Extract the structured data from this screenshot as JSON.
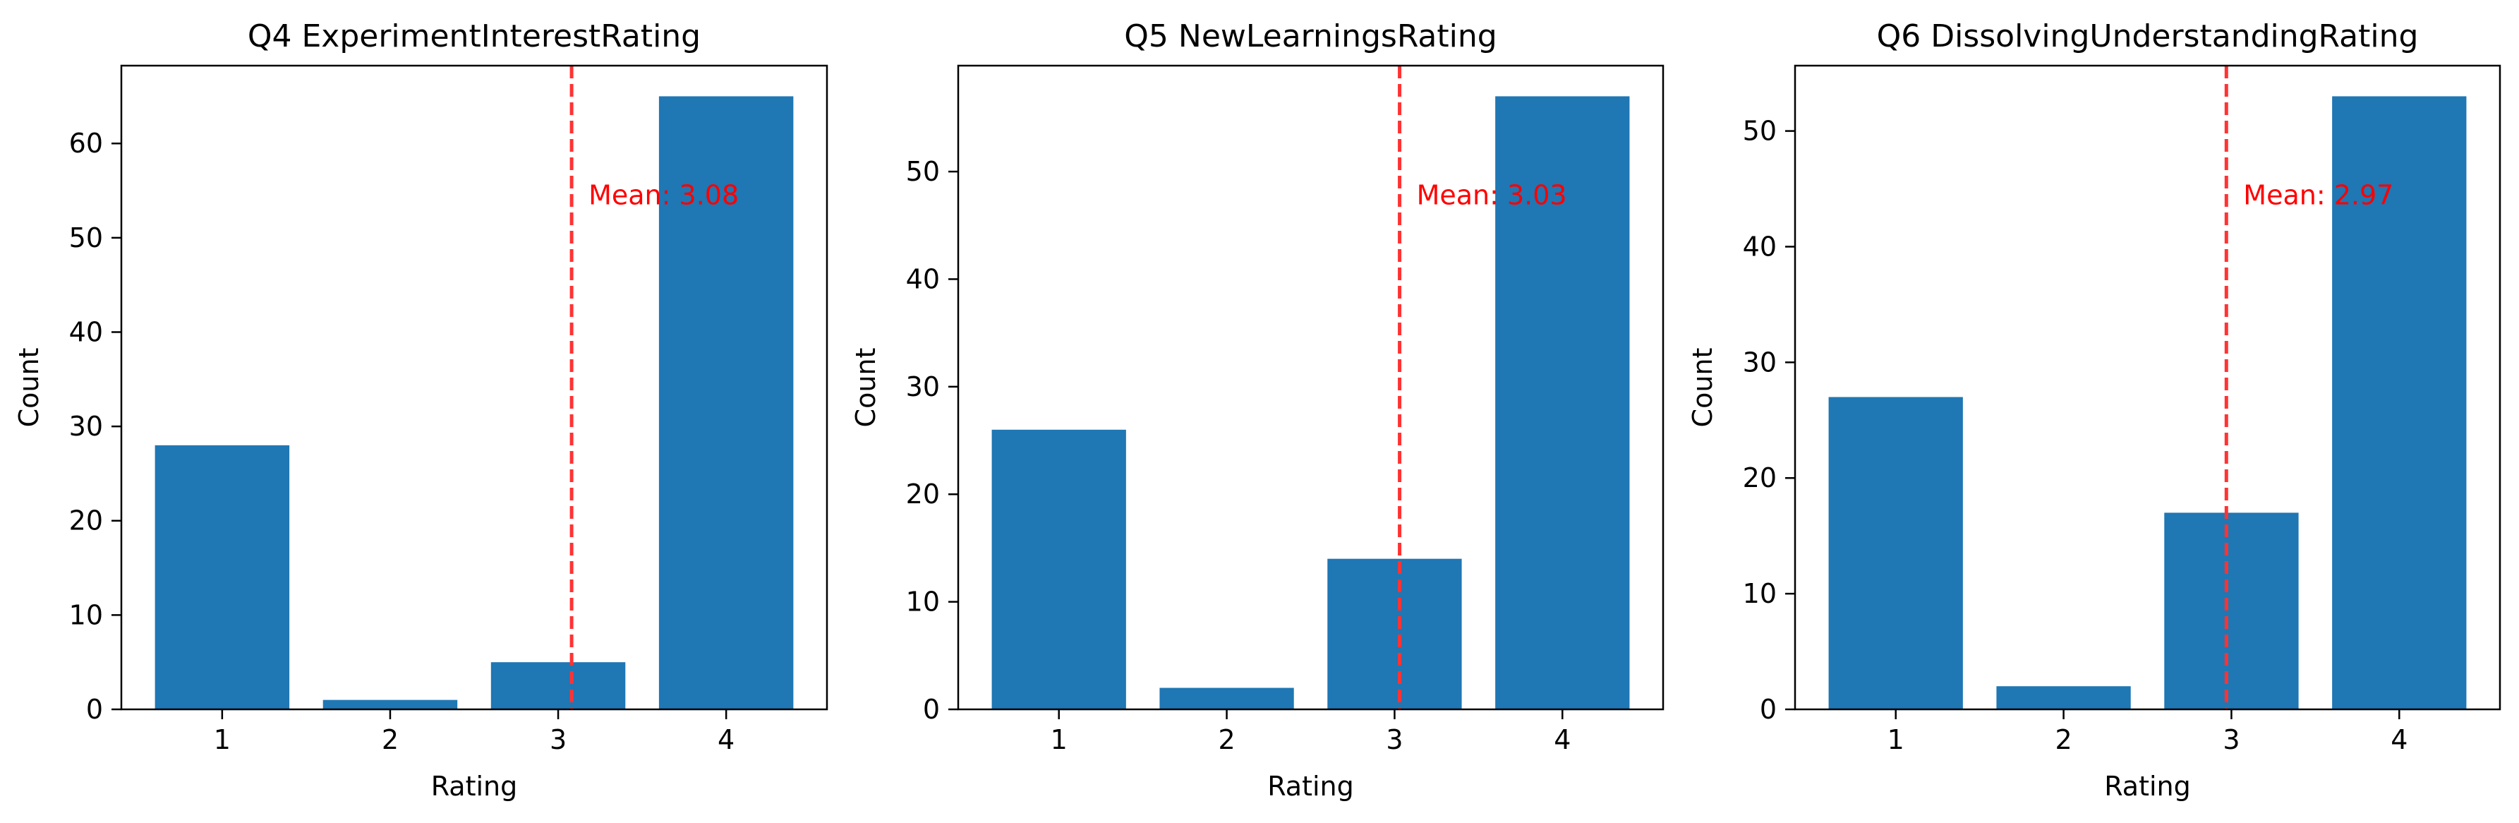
{
  "colors": {
    "bar": "#1f77b4",
    "mean_line": "#ff3333",
    "mean_text": "#ff0000",
    "axis": "#000000"
  },
  "chart_data": [
    {
      "type": "bar",
      "title": "Q4 ExperimentInterestRating",
      "xlabel": "Rating",
      "ylabel": "Count",
      "categories": [
        "1",
        "2",
        "3",
        "4"
      ],
      "values": [
        28,
        1,
        5,
        65
      ],
      "ylim": [
        0,
        68.25
      ],
      "yticks": [
        0,
        10,
        20,
        30,
        40,
        50,
        60
      ],
      "mean": 3.08,
      "mean_label": "Mean: 3.08",
      "legend": "none",
      "grid": false
    },
    {
      "type": "bar",
      "title": "Q5 NewLearningsRating",
      "xlabel": "Rating",
      "ylabel": "Count",
      "categories": [
        "1",
        "2",
        "3",
        "4"
      ],
      "values": [
        26,
        2,
        14,
        57
      ],
      "ylim": [
        0,
        59.85
      ],
      "yticks": [
        0,
        10,
        20,
        30,
        40,
        50
      ],
      "mean": 3.03,
      "mean_label": "Mean: 3.03",
      "legend": "none",
      "grid": false
    },
    {
      "type": "bar",
      "title": "Q6 DissolvingUnderstandingRating",
      "xlabel": "Rating",
      "ylabel": "Count",
      "categories": [
        "1",
        "2",
        "3",
        "4"
      ],
      "values": [
        27,
        2,
        17,
        53
      ],
      "ylim": [
        0,
        55.65
      ],
      "yticks": [
        0,
        10,
        20,
        30,
        40,
        50
      ],
      "mean": 2.97,
      "mean_label": "Mean: 2.97",
      "legend": "none",
      "grid": false
    }
  ]
}
